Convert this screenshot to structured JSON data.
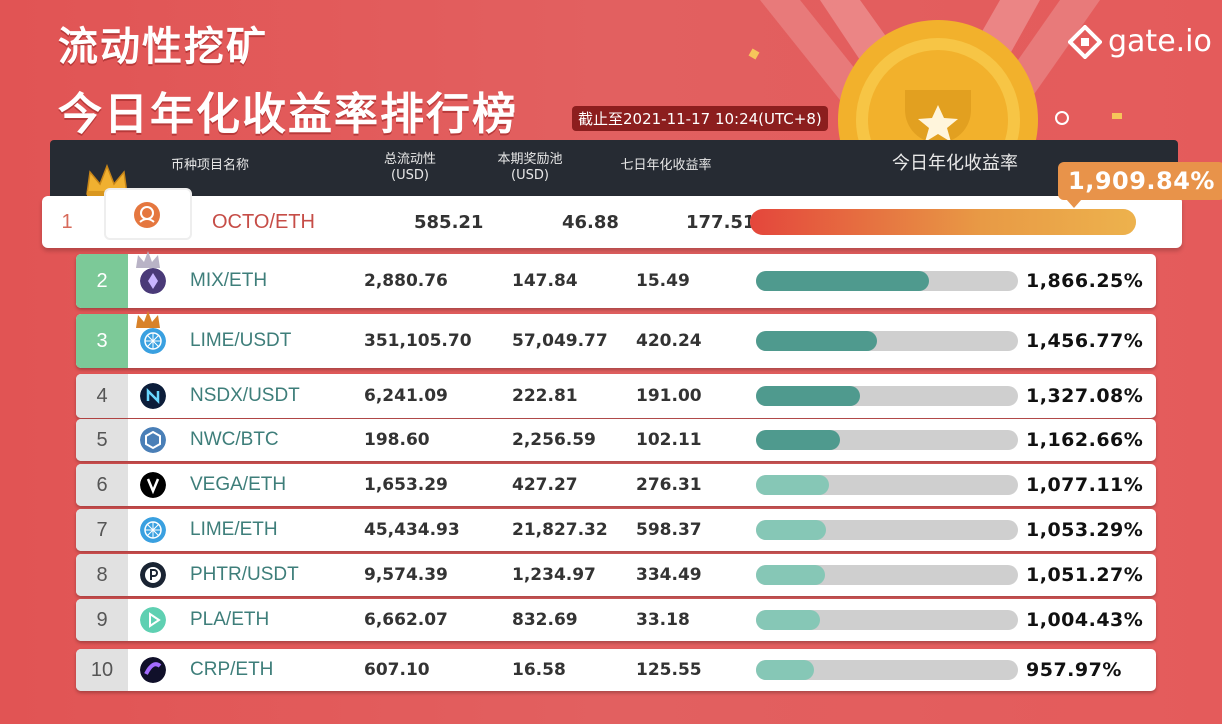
{
  "title_line1": "流动性挖矿",
  "title_line2": "今日年化收益率排行榜",
  "as_of": "截止至2021-11-17 10:24(UTC+8)",
  "logo": "gate.io",
  "colors": {
    "background": "#e05a5a",
    "header": "#262b33",
    "top3_rank": "#7cc998",
    "bar_dark": "#4f9a8e",
    "bar_light": "#86c7b6",
    "gold": "#f3b530"
  },
  "chart_data": {
    "type": "table",
    "columns": [
      "币种项目名称",
      "总流动性 (USD)",
      "本期奖励池 (USD)",
      "七日年化收益率",
      "今日年化收益率"
    ],
    "header": {
      "name": "币种项目名称",
      "liquidity": "总流动性\n(USD)",
      "liquidity_l1": "总流动性",
      "liquidity_l2": "(USD)",
      "pool_l1": "本期奖励池",
      "pool_l2": "(USD)",
      "seven_day": "七日年化收益率",
      "today": "今日年化收益率"
    },
    "rows": [
      {
        "rank": "1",
        "pair": "OCTO/ETH",
        "liquidity": "585.21",
        "pool": "46.88",
        "seven_day": "177.51",
        "today": "1,909.84%",
        "today_value": 1909.84,
        "icon": "octo-icon"
      },
      {
        "rank": "2",
        "pair": "MIX/ETH",
        "liquidity": "2,880.76",
        "pool": "147.84",
        "seven_day": "15.49",
        "today": "1,866.25%",
        "today_value": 1866.25,
        "icon": "mix-icon"
      },
      {
        "rank": "3",
        "pair": "LIME/USDT",
        "liquidity": "351,105.70",
        "pool": "57,049.77",
        "seven_day": "420.24",
        "today": "1,456.77%",
        "today_value": 1456.77,
        "icon": "lime-icon"
      },
      {
        "rank": "4",
        "pair": "NSDX/USDT",
        "liquidity": "6,241.09",
        "pool": "222.81",
        "seven_day": "191.00",
        "today": "1,327.08%",
        "today_value": 1327.08,
        "icon": "nsdx-icon"
      },
      {
        "rank": "5",
        "pair": "NWC/BTC",
        "liquidity": "198.60",
        "pool": "2,256.59",
        "seven_day": "102.11",
        "today": "1,162.66%",
        "today_value": 1162.66,
        "icon": "nwc-icon"
      },
      {
        "rank": "6",
        "pair": "VEGA/ETH",
        "liquidity": "1,653.29",
        "pool": "427.27",
        "seven_day": "276.31",
        "today": "1,077.11%",
        "today_value": 1077.11,
        "icon": "vega-icon"
      },
      {
        "rank": "7",
        "pair": "LIME/ETH",
        "liquidity": "45,434.93",
        "pool": "21,827.32",
        "seven_day": "598.37",
        "today": "1,053.29%",
        "today_value": 1053.29,
        "icon": "lime-icon"
      },
      {
        "rank": "8",
        "pair": "PHTR/USDT",
        "liquidity": "9,574.39",
        "pool": "1,234.97",
        "seven_day": "334.49",
        "today": "1,051.27%",
        "today_value": 1051.27,
        "icon": "phtr-icon"
      },
      {
        "rank": "9",
        "pair": "PLA/ETH",
        "liquidity": "6,662.07",
        "pool": "832.69",
        "seven_day": "33.18",
        "today": "1,004.43%",
        "today_value": 1004.43,
        "icon": "pla-icon"
      },
      {
        "rank": "10",
        "pair": "CRP/ETH",
        "liquidity": "607.10",
        "pool": "16.58",
        "seven_day": "125.55",
        "today": "957.97%",
        "today_value": 957.97,
        "icon": "crp-icon"
      }
    ],
    "bar_max": 2400
  }
}
